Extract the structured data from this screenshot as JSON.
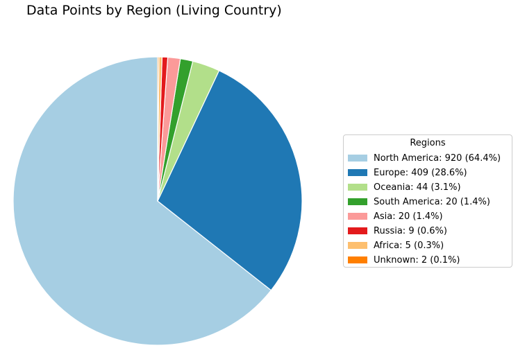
{
  "chart_data": {
    "type": "pie",
    "title": "Data Points by Region (Living Country)",
    "legend_title": "Regions",
    "legend_position": "right",
    "start_angle_deg": 90,
    "direction": "counterclockwise",
    "slices": [
      {
        "label": "North America",
        "value": 920,
        "percent": "64.4%",
        "color": "#a6cee3",
        "legend_text": "North America: 920 (64.4%)"
      },
      {
        "label": "Europe",
        "value": 409,
        "percent": "28.6%",
        "color": "#1f78b4",
        "legend_text": "Europe: 409 (28.6%)"
      },
      {
        "label": "Oceania",
        "value": 44,
        "percent": "3.1%",
        "color": "#b2df8a",
        "legend_text": "Oceania: 44 (3.1%)"
      },
      {
        "label": "South America",
        "value": 20,
        "percent": "1.4%",
        "color": "#33a02c",
        "legend_text": "South America: 20 (1.4%)"
      },
      {
        "label": "Asia",
        "value": 20,
        "percent": "1.4%",
        "color": "#fb9a99",
        "legend_text": "Asia: 20 (1.4%)"
      },
      {
        "label": "Russia",
        "value": 9,
        "percent": "0.6%",
        "color": "#e31a1c",
        "legend_text": "Russia: 9 (0.6%)"
      },
      {
        "label": "Africa",
        "value": 5,
        "percent": "0.3%",
        "color": "#fdbf6f",
        "legend_text": "Africa: 5 (0.3%)"
      },
      {
        "label": "Unknown",
        "value": 2,
        "percent": "0.1%",
        "color": "#ff7f00",
        "legend_text": "Unknown: 2 (0.1%)"
      }
    ]
  }
}
